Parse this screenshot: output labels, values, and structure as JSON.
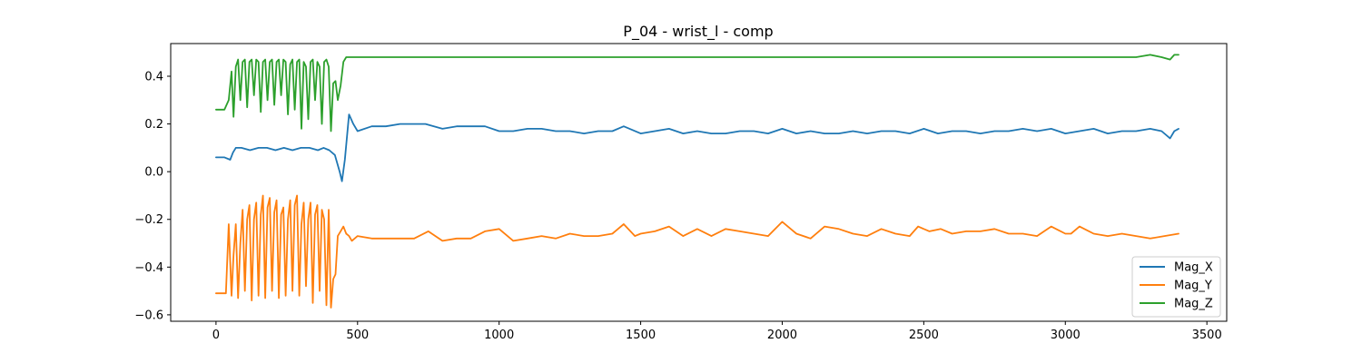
{
  "chart_data": {
    "type": "line",
    "title": "P_04 - wrist_l - comp",
    "xlabel": "",
    "ylabel": "",
    "xlim": [
      -160,
      3570
    ],
    "ylim": [
      -0.627,
      0.537
    ],
    "x_ticks": [
      0,
      500,
      1000,
      1500,
      2000,
      2500,
      3000,
      3500
    ],
    "x_tick_labels": [
      "0",
      "500",
      "1000",
      "1500",
      "2000",
      "2500",
      "3000",
      "3500"
    ],
    "y_ticks": [
      0.4,
      0.2,
      0.0,
      -0.2,
      -0.4,
      -0.6
    ],
    "y_tick_labels": [
      "0.4",
      "0.2",
      "0.0",
      "−0.2",
      "−0.4",
      "−0.6"
    ],
    "grid": false,
    "legend_position": "lower-right",
    "series": [
      {
        "name": "Mag_X",
        "color": "#1f77b4",
        "x": [
          0,
          30,
          50,
          60,
          70,
          90,
          120,
          150,
          180,
          210,
          240,
          270,
          300,
          330,
          360,
          380,
          400,
          420,
          437,
          445,
          455,
          470,
          485,
          500,
          550,
          600,
          650,
          700,
          740,
          800,
          850,
          900,
          950,
          1000,
          1050,
          1100,
          1150,
          1200,
          1250,
          1300,
          1350,
          1400,
          1440,
          1500,
          1550,
          1600,
          1650,
          1700,
          1750,
          1800,
          1850,
          1900,
          1950,
          2000,
          2050,
          2100,
          2150,
          2200,
          2250,
          2300,
          2350,
          2400,
          2450,
          2500,
          2550,
          2600,
          2650,
          2700,
          2750,
          2800,
          2850,
          2900,
          2950,
          3000,
          3050,
          3100,
          3150,
          3200,
          3250,
          3300,
          3340,
          3370,
          3385,
          3400
        ],
        "values": [
          0.06,
          0.06,
          0.05,
          0.08,
          0.1,
          0.1,
          0.09,
          0.1,
          0.1,
          0.09,
          0.1,
          0.09,
          0.1,
          0.1,
          0.09,
          0.1,
          0.09,
          0.07,
          0.0,
          -0.04,
          0.05,
          0.24,
          0.2,
          0.17,
          0.19,
          0.19,
          0.2,
          0.2,
          0.2,
          0.18,
          0.19,
          0.19,
          0.19,
          0.17,
          0.17,
          0.18,
          0.18,
          0.17,
          0.17,
          0.16,
          0.17,
          0.17,
          0.19,
          0.16,
          0.17,
          0.18,
          0.16,
          0.17,
          0.16,
          0.16,
          0.17,
          0.17,
          0.16,
          0.18,
          0.16,
          0.17,
          0.16,
          0.16,
          0.17,
          0.16,
          0.17,
          0.17,
          0.16,
          0.18,
          0.16,
          0.17,
          0.17,
          0.16,
          0.17,
          0.17,
          0.18,
          0.17,
          0.18,
          0.16,
          0.17,
          0.18,
          0.16,
          0.17,
          0.17,
          0.18,
          0.17,
          0.14,
          0.17,
          0.18
        ]
      },
      {
        "name": "Mag_Y",
        "color": "#ff7f0e",
        "x": [
          0,
          20,
          35,
          45,
          55,
          62,
          70,
          78,
          86,
          94,
          102,
          110,
          118,
          126,
          134,
          142,
          150,
          158,
          166,
          174,
          182,
          190,
          198,
          206,
          214,
          222,
          230,
          238,
          246,
          254,
          262,
          270,
          278,
          286,
          294,
          302,
          310,
          318,
          326,
          334,
          342,
          350,
          358,
          366,
          374,
          382,
          390,
          398,
          406,
          414,
          422,
          430,
          440,
          450,
          460,
          470,
          480,
          500,
          550,
          600,
          650,
          700,
          750,
          800,
          850,
          900,
          950,
          1000,
          1050,
          1100,
          1150,
          1200,
          1250,
          1300,
          1350,
          1400,
          1440,
          1480,
          1500,
          1550,
          1600,
          1650,
          1700,
          1750,
          1800,
          1850,
          1900,
          1950,
          2000,
          2050,
          2100,
          2150,
          2200,
          2250,
          2300,
          2350,
          2400,
          2450,
          2480,
          2520,
          2560,
          2600,
          2650,
          2700,
          2750,
          2800,
          2850,
          2900,
          2950,
          3000,
          3020,
          3050,
          3100,
          3150,
          3200,
          3250,
          3300,
          3350,
          3400
        ],
        "values": [
          -0.51,
          -0.51,
          -0.51,
          -0.22,
          -0.52,
          -0.35,
          -0.22,
          -0.53,
          -0.3,
          -0.16,
          -0.5,
          -0.2,
          -0.14,
          -0.54,
          -0.2,
          -0.13,
          -0.52,
          -0.18,
          -0.1,
          -0.53,
          -0.15,
          -0.11,
          -0.5,
          -0.17,
          -0.12,
          -0.53,
          -0.18,
          -0.15,
          -0.52,
          -0.2,
          -0.12,
          -0.5,
          -0.14,
          -0.1,
          -0.52,
          -0.22,
          -0.13,
          -0.48,
          -0.2,
          -0.13,
          -0.55,
          -0.18,
          -0.14,
          -0.5,
          -0.16,
          -0.2,
          -0.56,
          -0.16,
          -0.57,
          -0.45,
          -0.43,
          -0.27,
          -0.25,
          -0.23,
          -0.26,
          -0.27,
          -0.29,
          -0.27,
          -0.28,
          -0.28,
          -0.28,
          -0.28,
          -0.25,
          -0.29,
          -0.28,
          -0.28,
          -0.25,
          -0.24,
          -0.29,
          -0.28,
          -0.27,
          -0.28,
          -0.26,
          -0.27,
          -0.27,
          -0.26,
          -0.22,
          -0.27,
          -0.26,
          -0.25,
          -0.23,
          -0.27,
          -0.24,
          -0.27,
          -0.24,
          -0.25,
          -0.26,
          -0.27,
          -0.21,
          -0.26,
          -0.28,
          -0.23,
          -0.24,
          -0.26,
          -0.27,
          -0.24,
          -0.26,
          -0.27,
          -0.23,
          -0.25,
          -0.24,
          -0.26,
          -0.25,
          -0.25,
          -0.24,
          -0.26,
          -0.26,
          -0.27,
          -0.23,
          -0.26,
          -0.26,
          -0.23,
          -0.26,
          -0.27,
          -0.26,
          -0.27,
          -0.28,
          -0.27,
          -0.26
        ]
      },
      {
        "name": "Mag_Z",
        "color": "#2ca02c",
        "x": [
          0,
          30,
          45,
          55,
          62,
          70,
          78,
          86,
          94,
          102,
          110,
          118,
          126,
          134,
          142,
          150,
          158,
          166,
          174,
          182,
          190,
          198,
          206,
          214,
          222,
          230,
          238,
          246,
          254,
          262,
          270,
          278,
          286,
          294,
          302,
          310,
          318,
          326,
          334,
          342,
          350,
          358,
          366,
          374,
          382,
          390,
          398,
          406,
          414,
          422,
          430,
          440,
          450,
          460,
          470,
          500,
          550,
          600,
          650,
          700,
          750,
          800,
          850,
          900,
          950,
          1000,
          1050,
          1100,
          1150,
          1200,
          1250,
          1300,
          1350,
          1400,
          1450,
          1500,
          1550,
          1600,
          1650,
          1700,
          1750,
          1800,
          1850,
          1900,
          1950,
          2000,
          2050,
          2100,
          2150,
          2200,
          2250,
          2300,
          2350,
          2400,
          2450,
          2500,
          2550,
          2600,
          2650,
          2700,
          2750,
          2800,
          2850,
          2900,
          2950,
          3000,
          3050,
          3100,
          3150,
          3200,
          3250,
          3300,
          3340,
          3370,
          3385,
          3400
        ],
        "values": [
          0.26,
          0.26,
          0.3,
          0.42,
          0.23,
          0.44,
          0.47,
          0.3,
          0.46,
          0.47,
          0.27,
          0.46,
          0.47,
          0.32,
          0.47,
          0.46,
          0.25,
          0.46,
          0.47,
          0.3,
          0.46,
          0.47,
          0.28,
          0.46,
          0.47,
          0.32,
          0.47,
          0.46,
          0.24,
          0.45,
          0.47,
          0.26,
          0.46,
          0.47,
          0.18,
          0.46,
          0.44,
          0.22,
          0.46,
          0.47,
          0.3,
          0.46,
          0.44,
          0.2,
          0.46,
          0.47,
          0.44,
          0.17,
          0.37,
          0.38,
          0.3,
          0.36,
          0.46,
          0.48,
          0.48,
          0.48,
          0.48,
          0.48,
          0.48,
          0.48,
          0.48,
          0.48,
          0.48,
          0.48,
          0.48,
          0.48,
          0.48,
          0.48,
          0.48,
          0.48,
          0.48,
          0.48,
          0.48,
          0.48,
          0.48,
          0.48,
          0.48,
          0.48,
          0.48,
          0.48,
          0.48,
          0.48,
          0.48,
          0.48,
          0.48,
          0.48,
          0.48,
          0.48,
          0.48,
          0.48,
          0.48,
          0.48,
          0.48,
          0.48,
          0.48,
          0.48,
          0.48,
          0.48,
          0.48,
          0.48,
          0.48,
          0.48,
          0.48,
          0.48,
          0.48,
          0.48,
          0.48,
          0.48,
          0.48,
          0.48,
          0.48,
          0.49,
          0.48,
          0.47,
          0.49,
          0.49
        ]
      }
    ]
  }
}
